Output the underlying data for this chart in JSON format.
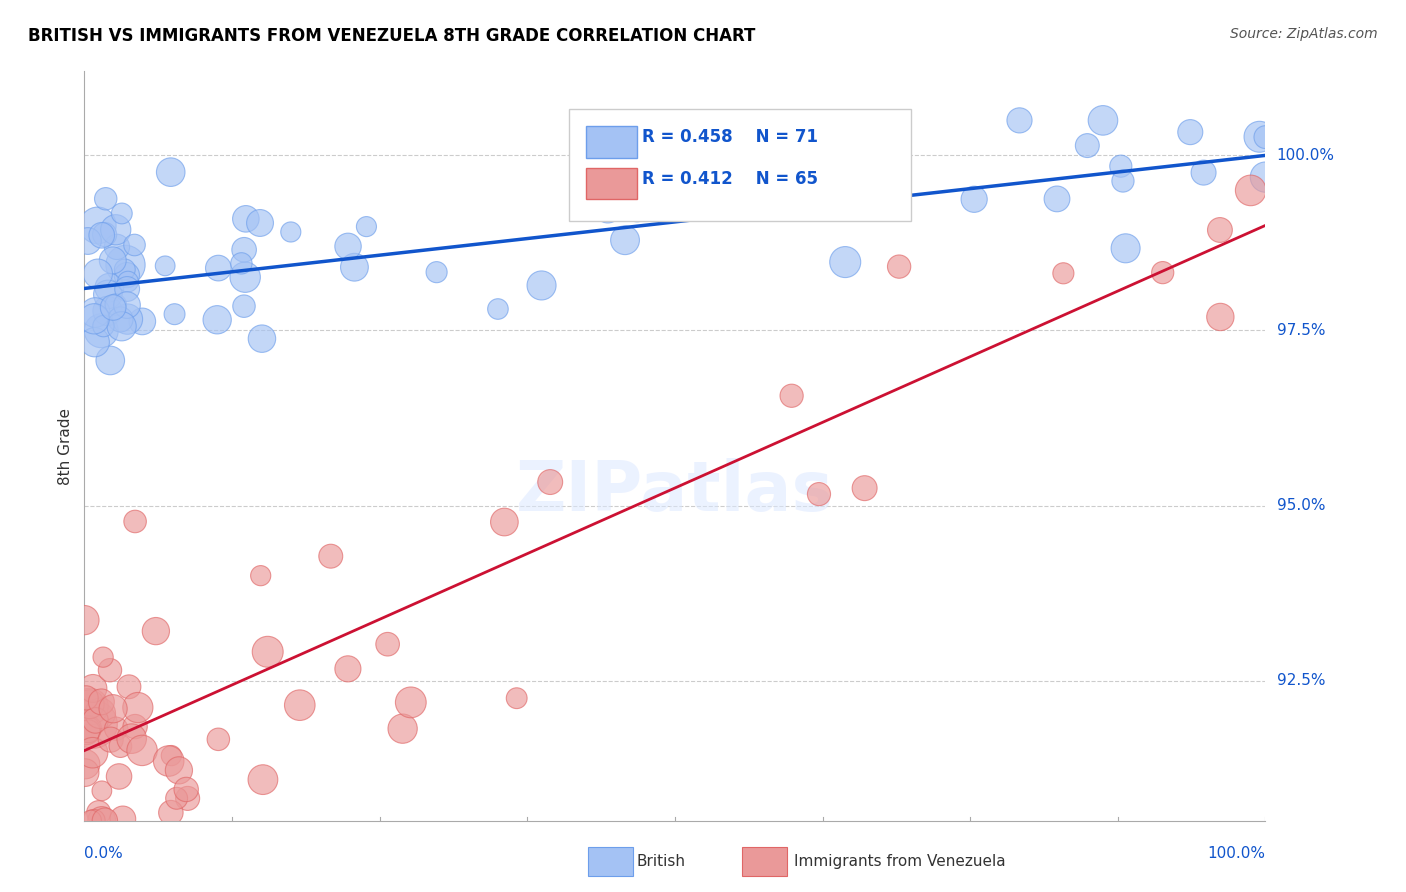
{
  "title": "BRITISH VS IMMIGRANTS FROM VENEZUELA 8TH GRADE CORRELATION CHART",
  "source": "Source: ZipAtlas.com",
  "ylabel": "8th Grade",
  "watermark": "ZIPatlas",
  "legend_british_R": 0.458,
  "legend_british_N": 71,
  "legend_venezuela_R": 0.412,
  "legend_venezuela_N": 65,
  "xlim": [
    0.0,
    100.0
  ],
  "ylim": [
    90.5,
    101.2
  ],
  "yticks": [
    92.5,
    95.0,
    97.5,
    100.0
  ],
  "ytick_labels": [
    "92.5%",
    "95.0%",
    "97.5%",
    "100.0%"
  ],
  "british_color": "#a4c2f4",
  "venezuela_color": "#ea9999",
  "british_edge_color": "#6d9eeb",
  "venezuela_edge_color": "#e06666",
  "trend_british_color": "#1155cc",
  "trend_venezuela_color": "#cc1133",
  "background_color": "#ffffff",
  "grid_color": "#cccccc",
  "title_color": "#000000",
  "axis_label_color": "#1155cc",
  "legend_text_color": "#1155cc",
  "british_trend_start_y": 98.1,
  "british_trend_end_y": 100.0,
  "venezuela_trend_start_y": 91.5,
  "venezuela_trend_end_y": 99.0
}
